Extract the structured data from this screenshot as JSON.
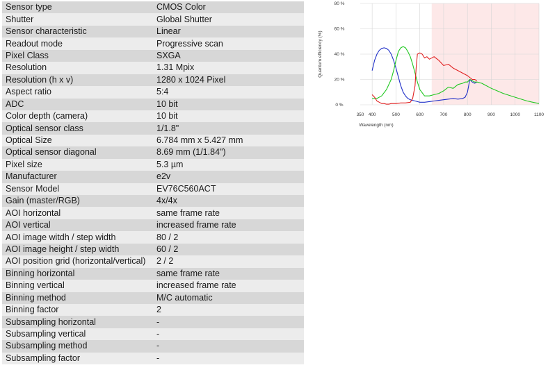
{
  "specs": [
    {
      "label": "Sensor type",
      "value": "CMOS Color"
    },
    {
      "label": "Shutter",
      "value": "Global Shutter"
    },
    {
      "label": "Sensor characteristic",
      "value": "Linear"
    },
    {
      "label": "Readout mode",
      "value": "Progressive scan"
    },
    {
      "label": "Pixel Class",
      "value": "SXGA"
    },
    {
      "label": "Resolution",
      "value": "1.31 Mpix"
    },
    {
      "label": "Resolution (h x v)",
      "value": "1280 x 1024 Pixel"
    },
    {
      "label": "Aspect ratio",
      "value": "5:4"
    },
    {
      "label": "ADC",
      "value": "10 bit"
    },
    {
      "label": "Color depth (camera)",
      "value": "10 bit"
    },
    {
      "label": "Optical sensor class",
      "value": "1/1.8\""
    },
    {
      "label": "Optical Size",
      "value": "6.784 mm x 5.427 mm"
    },
    {
      "label": "Optical sensor diagonal",
      "value": "8.69 mm (1/1.84\")"
    },
    {
      "label": "Pixel size",
      "value": "5.3 µm"
    },
    {
      "label": "Manufacturer",
      "value": "e2v"
    },
    {
      "label": "Sensor Model",
      "value": "EV76C560ACT"
    },
    {
      "label": "Gain (master/RGB)",
      "value": "4x/4x"
    },
    {
      "label": "AOI horizontal",
      "value": "same frame rate"
    },
    {
      "label": "AOI vertical",
      "value": "increased frame rate"
    },
    {
      "label": "AOI image witdh / step width",
      "value": "80 / 2"
    },
    {
      "label": "AOI image height / step width",
      "value": "60 / 2"
    },
    {
      "label": "AOI position grid (horizontal/vertical)",
      "value": "2 / 2"
    },
    {
      "label": "Binning horizontal",
      "value": "same frame rate"
    },
    {
      "label": "Binning vertical",
      "value": "increased frame rate"
    },
    {
      "label": "Binning method",
      "value": "M/C automatic"
    },
    {
      "label": "Binning factor",
      "value": "2"
    },
    {
      "label": "Subsampling horizontal",
      "value": "-"
    },
    {
      "label": "Subsampling vertical",
      "value": "-"
    },
    {
      "label": "Subsampling method",
      "value": "-"
    },
    {
      "label": "Subsampling factor",
      "value": "-"
    }
  ],
  "chart_data": {
    "type": "line",
    "title": "",
    "xlabel": "Wavelength (nm)",
    "ylabel": "Quantum efficiency (%)",
    "xlim": [
      350,
      1100
    ],
    "ylim": [
      0,
      80
    ],
    "xticks": [
      350,
      400,
      500,
      600,
      700,
      800,
      900,
      1000,
      1100
    ],
    "yticks": [
      0,
      20,
      40,
      60,
      80
    ],
    "ytick_labels": [
      "0 %",
      "20 %",
      "40 %",
      "60 %",
      "80 %"
    ],
    "shaded_region": {
      "from": 650,
      "to": 1100,
      "color": "#fde8e8"
    },
    "grid": true,
    "series": [
      {
        "color": "#1f2fc8",
        "x": [
          400,
          410,
          420,
          430,
          440,
          450,
          460,
          470,
          480,
          490,
          500,
          510,
          520,
          530,
          540,
          550,
          560,
          570,
          580,
          590,
          600,
          620,
          640,
          660,
          680,
          700,
          720,
          740,
          760,
          780,
          790,
          800,
          810,
          820,
          830,
          840
        ],
        "y": [
          27,
          35,
          40,
          43,
          44.5,
          45,
          44.5,
          43,
          40,
          35,
          29,
          22,
          15,
          10,
          7,
          5,
          4,
          3.5,
          3,
          2.5,
          2,
          2,
          2.5,
          3,
          3.5,
          4,
          4.5,
          5,
          4.5,
          5,
          6,
          10,
          20,
          18,
          17,
          18
        ]
      },
      {
        "color": "#1fc81f",
        "x": [
          400,
          420,
          440,
          460,
          480,
          490,
          500,
          510,
          520,
          530,
          540,
          550,
          560,
          570,
          580,
          590,
          600,
          620,
          640,
          660,
          680,
          700,
          720,
          740,
          760,
          780,
          790,
          800,
          810,
          820,
          830,
          840,
          860,
          880,
          900,
          950,
          1000,
          1050,
          1100
        ],
        "y": [
          5,
          5,
          7,
          12,
          20,
          27,
          35,
          42,
          45,
          46,
          45,
          42,
          38,
          32,
          25,
          18,
          12,
          7,
          7,
          8,
          9,
          11,
          14,
          13,
          16,
          17,
          18,
          18,
          20,
          19,
          18,
          18,
          17,
          15,
          13,
          9,
          6,
          3,
          1
        ]
      },
      {
        "color": "#e02020",
        "x": [
          400,
          410,
          420,
          430,
          440,
          450,
          460,
          470,
          480,
          500,
          520,
          540,
          560,
          570,
          580,
          585,
          590,
          600,
          610,
          620,
          630,
          640,
          660,
          680,
          700,
          720,
          740,
          760,
          780,
          800,
          820,
          830,
          840
        ],
        "y": [
          8,
          6,
          3,
          2,
          1,
          1,
          0.5,
          0.5,
          1,
          1,
          1.5,
          1.5,
          2,
          5,
          15,
          30,
          40,
          41,
          40,
          37,
          38,
          36,
          38,
          35,
          31,
          32,
          29,
          27,
          25,
          23,
          20,
          20,
          19
        ]
      }
    ]
  }
}
